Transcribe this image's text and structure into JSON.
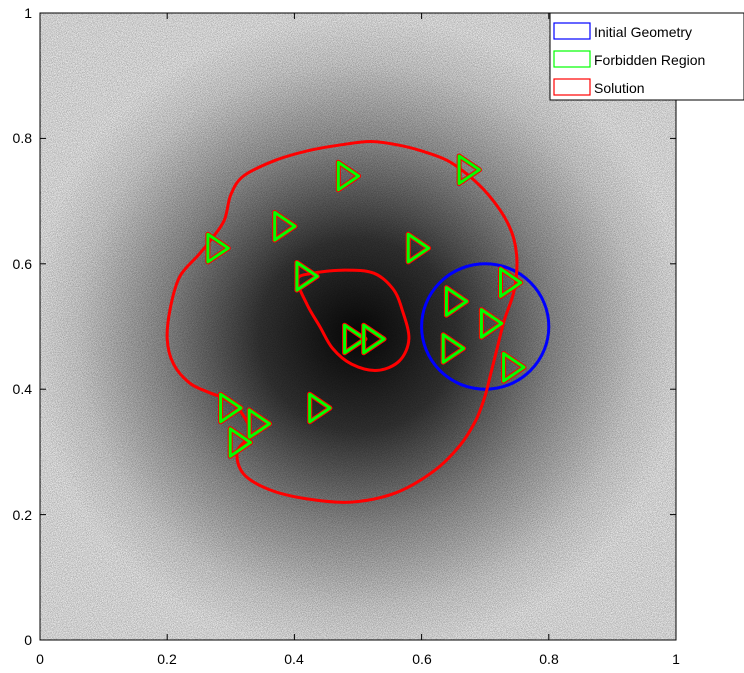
{
  "chart_data": {
    "type": "other",
    "xlim": [
      0,
      1
    ],
    "ylim": [
      0,
      1
    ],
    "x_ticks": [
      "0",
      "0.2",
      "0.4",
      "0.6",
      "0.8",
      "1"
    ],
    "y_ticks": [
      "0",
      "0.2",
      "0.4",
      "0.6",
      "0.8",
      "1"
    ],
    "grid": false,
    "legend_position": "top-right",
    "background": "grayscale noise with dark gaussian blob centered near (0.5, 0.5)",
    "legend": [
      {
        "label": "Initial Geometry",
        "color": "#0000ff"
      },
      {
        "label": "Forbidden Region",
        "color": "#00ff00"
      },
      {
        "label": "Solution",
        "color": "#ff0000"
      }
    ],
    "series": {
      "initial_geometry": {
        "shape": "circle",
        "center": [
          0.7,
          0.5
        ],
        "radius": 0.1,
        "color": "#0000ff"
      },
      "solution_outer": {
        "color": "#ff0000",
        "points": [
          [
            0.475,
            0.79
          ],
          [
            0.52,
            0.795
          ],
          [
            0.56,
            0.79
          ],
          [
            0.6,
            0.78
          ],
          [
            0.64,
            0.765
          ],
          [
            0.675,
            0.74
          ],
          [
            0.705,
            0.71
          ],
          [
            0.73,
            0.675
          ],
          [
            0.745,
            0.64
          ],
          [
            0.75,
            0.6
          ],
          [
            0.745,
            0.555
          ],
          [
            0.73,
            0.51
          ],
          [
            0.72,
            0.47
          ],
          [
            0.71,
            0.43
          ],
          [
            0.7,
            0.39
          ],
          [
            0.685,
            0.35
          ],
          [
            0.66,
            0.31
          ],
          [
            0.62,
            0.27
          ],
          [
            0.56,
            0.235
          ],
          [
            0.49,
            0.22
          ],
          [
            0.42,
            0.225
          ],
          [
            0.36,
            0.24
          ],
          [
            0.32,
            0.265
          ],
          [
            0.31,
            0.3
          ],
          [
            0.33,
            0.33
          ],
          [
            0.315,
            0.365
          ],
          [
            0.29,
            0.385
          ],
          [
            0.265,
            0.395
          ],
          [
            0.235,
            0.41
          ],
          [
            0.21,
            0.44
          ],
          [
            0.2,
            0.48
          ],
          [
            0.205,
            0.53
          ],
          [
            0.22,
            0.58
          ],
          [
            0.25,
            0.615
          ],
          [
            0.27,
            0.64
          ],
          [
            0.29,
            0.67
          ],
          [
            0.3,
            0.71
          ],
          [
            0.32,
            0.74
          ],
          [
            0.37,
            0.765
          ],
          [
            0.42,
            0.78
          ]
        ]
      },
      "solution_inner": {
        "color": "#ff0000",
        "points": [
          [
            0.405,
            0.575
          ],
          [
            0.43,
            0.585
          ],
          [
            0.48,
            0.59
          ],
          [
            0.525,
            0.585
          ],
          [
            0.555,
            0.56
          ],
          [
            0.57,
            0.525
          ],
          [
            0.58,
            0.48
          ],
          [
            0.565,
            0.445
          ],
          [
            0.53,
            0.43
          ],
          [
            0.49,
            0.44
          ],
          [
            0.46,
            0.465
          ],
          [
            0.44,
            0.5
          ],
          [
            0.42,
            0.535
          ]
        ]
      },
      "forbidden_regions": {
        "color": "#00ff00",
        "shape": "triangle",
        "centers": [
          [
            0.485,
            0.74
          ],
          [
            0.385,
            0.66
          ],
          [
            0.28,
            0.625
          ],
          [
            0.42,
            0.58
          ],
          [
            0.595,
            0.625
          ],
          [
            0.675,
            0.75
          ],
          [
            0.655,
            0.54
          ],
          [
            0.74,
            0.57
          ],
          [
            0.71,
            0.505
          ],
          [
            0.65,
            0.465
          ],
          [
            0.745,
            0.435
          ],
          [
            0.495,
            0.48
          ],
          [
            0.525,
            0.48
          ],
          [
            0.44,
            0.37
          ],
          [
            0.3,
            0.37
          ],
          [
            0.345,
            0.345
          ],
          [
            0.315,
            0.315
          ]
        ]
      }
    }
  }
}
